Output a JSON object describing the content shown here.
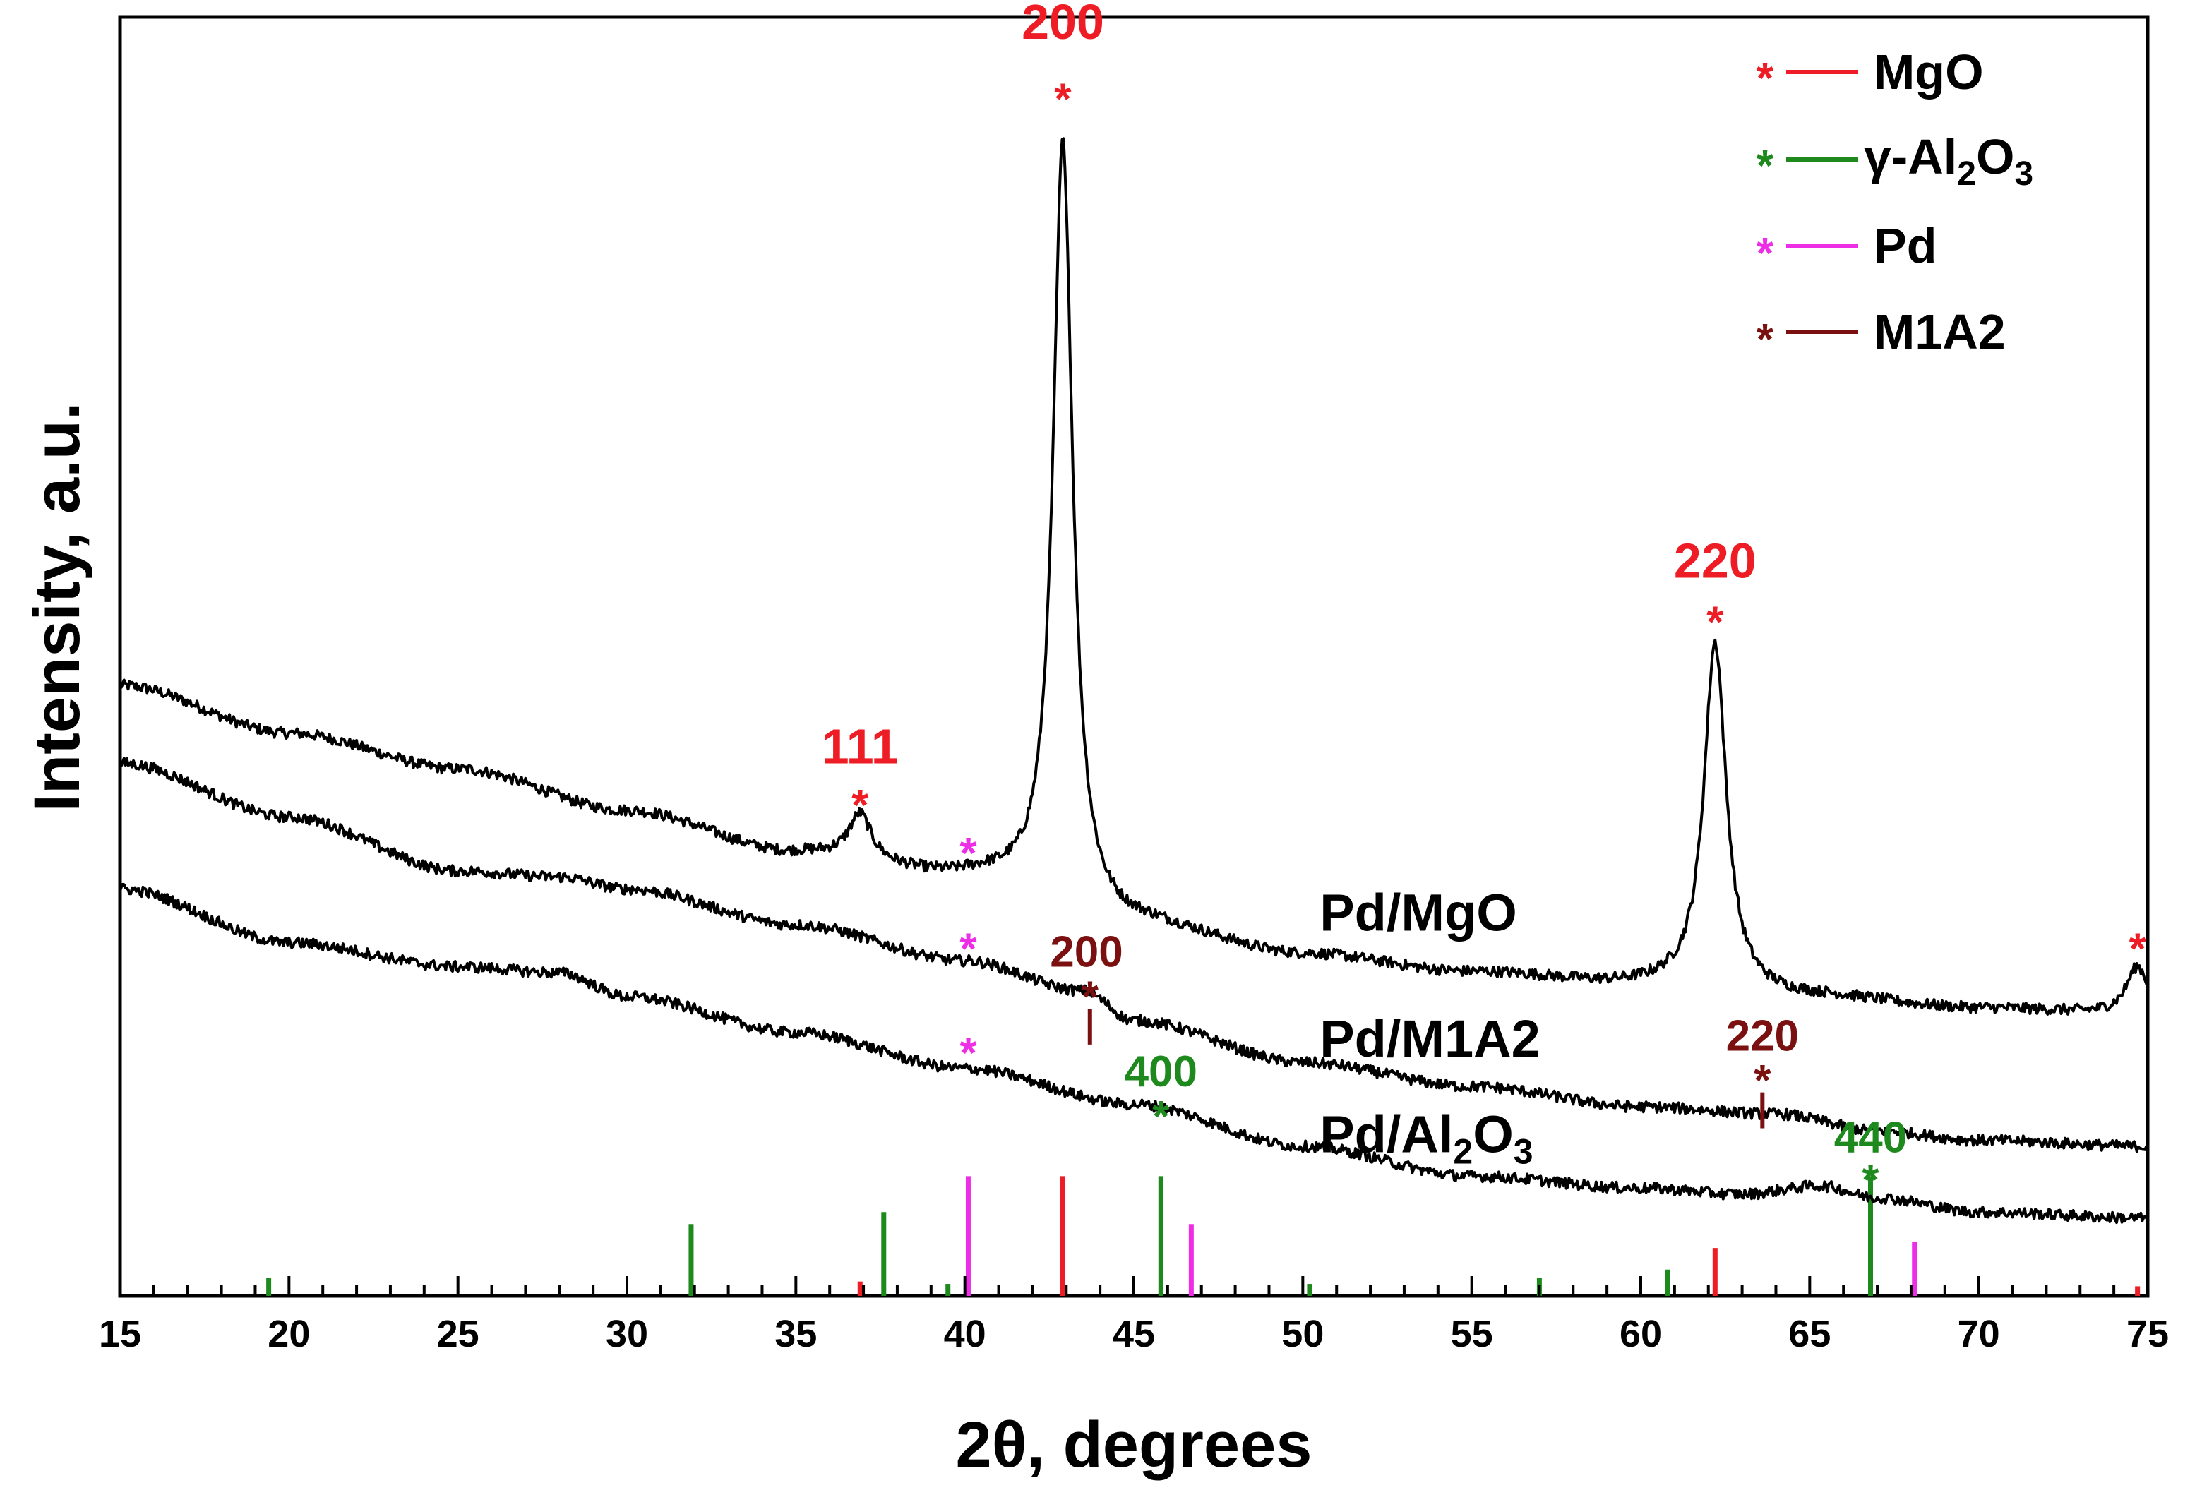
{
  "chart_data": {
    "type": "line",
    "xlabel": "2θ, degrees",
    "ylabel": "Intensity, a.u.",
    "xlim": [
      15,
      75
    ],
    "ylim": [
      0,
      100
    ],
    "x_ticks": [
      15,
      20,
      25,
      30,
      35,
      40,
      45,
      50,
      55,
      60,
      65,
      70,
      75
    ],
    "grid": false,
    "colors": {
      "MgO": "#ee1c24",
      "Al2O3": "#1e8a1e",
      "Pd": "#ee2ee6",
      "M1A2": "#7a1010",
      "line": "#000000"
    },
    "series": [
      {
        "name": "Pd/MgO",
        "label": "Pd/MgO",
        "baseline": [
          [
            15,
            51
          ],
          [
            20,
            47
          ],
          [
            25,
            44
          ],
          [
            30,
            40.5
          ],
          [
            35,
            37
          ],
          [
            40,
            35
          ],
          [
            45,
            31
          ],
          [
            50,
            28.5
          ],
          [
            55,
            27
          ],
          [
            60,
            26
          ],
          [
            65,
            25
          ],
          [
            70,
            24
          ],
          [
            75,
            23.5
          ]
        ],
        "peaks": [
          [
            36.9,
            3.8,
            0.4
          ],
          [
            42.9,
            64,
            0.35
          ],
          [
            62.2,
            29,
            0.4
          ],
          [
            74.7,
            4,
            0.4
          ]
        ]
      },
      {
        "name": "Pd/M1A2",
        "label": "Pd/M1A2",
        "baseline": [
          [
            15,
            44.5
          ],
          [
            20,
            40
          ],
          [
            25,
            35.5
          ],
          [
            28,
            35
          ],
          [
            30,
            34
          ],
          [
            35,
            31
          ],
          [
            40,
            28
          ],
          [
            43.5,
            25.5
          ],
          [
            45,
            23
          ],
          [
            50,
            19.5
          ],
          [
            55,
            17.5
          ],
          [
            60,
            15.8
          ],
          [
            64,
            15.2
          ],
          [
            67,
            13.8
          ],
          [
            70,
            13
          ],
          [
            75,
            12.5
          ]
        ],
        "peaks": []
      },
      {
        "name": "Pd/Al2O3",
        "label_main": "Pd/Al",
        "label_sub1": "2",
        "label_mid": "O",
        "label_sub2": "3",
        "baseline": [
          [
            15,
            34
          ],
          [
            20,
            29.5
          ],
          [
            25,
            27.5
          ],
          [
            28,
            27
          ],
          [
            30,
            25
          ],
          [
            35,
            22
          ],
          [
            40,
            19
          ],
          [
            45,
            16
          ],
          [
            50,
            12.5
          ],
          [
            55,
            10
          ],
          [
            60,
            9
          ],
          [
            63,
            8.5
          ],
          [
            65.3,
            9.2
          ],
          [
            67,
            8.2
          ],
          [
            70,
            7
          ],
          [
            75,
            6.5
          ]
        ],
        "peaks": []
      }
    ],
    "reference_lines": {
      "MgO": [
        [
          36.9,
          1.2
        ],
        [
          42.9,
          10
        ],
        [
          62.2,
          4
        ],
        [
          74.7,
          0.8
        ]
      ],
      "Al2O3": [
        [
          19.4,
          1.5
        ],
        [
          31.9,
          6
        ],
        [
          37.6,
          7
        ],
        [
          39.5,
          1
        ],
        [
          45.8,
          10
        ],
        [
          50.2,
          1
        ],
        [
          57,
          1.5
        ],
        [
          60.8,
          2.2
        ],
        [
          66.8,
          10
        ]
      ],
      "Pd": [
        [
          40.1,
          10
        ],
        [
          46.7,
          6
        ],
        [
          68.1,
          4.5
        ]
      ]
    },
    "peak_labels": [
      {
        "text": "111",
        "x": 36.9,
        "y": 44.5,
        "color": "#ee1c24",
        "size": 70
      },
      {
        "text": "200",
        "x": 42.9,
        "y": 105,
        "color": "#ee1c24",
        "size": 70
      },
      {
        "text": "220",
        "x": 62.2,
        "y": 60,
        "color": "#ee1c24",
        "size": 70
      },
      {
        "text": "200",
        "x": 43.6,
        "y": 27.5,
        "color": "#7a1010",
        "size": 62
      },
      {
        "text": "220",
        "x": 63.6,
        "y": 20.5,
        "color": "#7a1010",
        "size": 62
      },
      {
        "text": "400",
        "x": 45.8,
        "y": 17.5,
        "color": "#1e8a1e",
        "size": 62
      },
      {
        "text": "440",
        "x": 66.8,
        "y": 12,
        "color": "#1e8a1e",
        "size": 62
      }
    ],
    "star_markers": [
      {
        "x": 36.9,
        "y": 41.5,
        "color": "#ee1c24"
      },
      {
        "x": 42.9,
        "y": 100.5,
        "color": "#ee1c24"
      },
      {
        "x": 62.2,
        "y": 56.8,
        "color": "#ee1c24"
      },
      {
        "x": 74.7,
        "y": 29.5,
        "color": "#ee1c24"
      },
      {
        "x": 40.1,
        "y": 37.5,
        "color": "#ee2ee6"
      },
      {
        "x": 40.1,
        "y": 29.5,
        "color": "#ee2ee6"
      },
      {
        "x": 40.1,
        "y": 20.8,
        "color": "#ee2ee6"
      },
      {
        "x": 43.7,
        "y": 25.5,
        "color": "#7a1010"
      },
      {
        "x": 63.6,
        "y": 18.5,
        "color": "#7a1010"
      },
      {
        "x": 45.8,
        "y": 15.5,
        "color": "#1e8a1e"
      },
      {
        "x": 66.8,
        "y": 10.2,
        "color": "#1e8a1e"
      }
    ],
    "m1a2_ticks": [
      {
        "x": 43.7,
        "y_top": 24.0,
        "y_bottom": 21.0
      },
      {
        "x": 63.6,
        "y_top": 17.0,
        "y_bottom": 14.0
      }
    ],
    "series_label_positions": {
      "Pd/MgO": [
        50.5,
        30.5
      ],
      "Pd/M1A2": [
        50.5,
        20.0
      ],
      "Pd/Al2O3": [
        50.5,
        12.0
      ]
    },
    "legend": [
      {
        "label": "MgO",
        "color": "#ee1c24"
      },
      {
        "label_main": "γ-Al",
        "label_sub1": "2",
        "label_mid": "O",
        "label_sub2": "3",
        "color": "#1e8a1e"
      },
      {
        "label": "Pd",
        "color": "#ee2ee6"
      },
      {
        "label": "M1A2",
        "color": "#7a1010"
      }
    ],
    "legend_position": "top-right",
    "star_symbol": "*"
  }
}
